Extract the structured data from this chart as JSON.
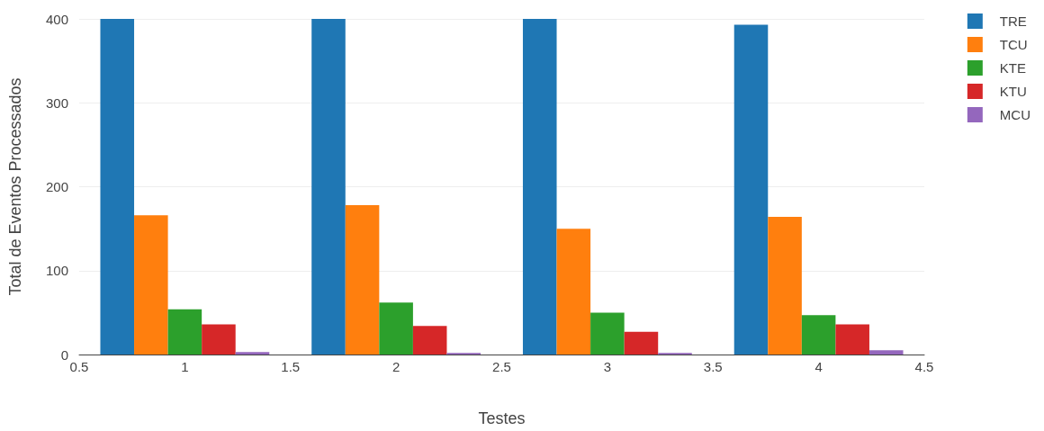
{
  "chart_data": {
    "type": "bar",
    "xlabel": "Testes",
    "ylabel": "Total de Eventos Processados",
    "x": [
      1,
      2,
      3,
      4
    ],
    "series": [
      {
        "name": "TRE",
        "color": "#1f77b4",
        "values": [
          400,
          400,
          400,
          393
        ]
      },
      {
        "name": "TCU",
        "color": "#ff7f0e",
        "values": [
          166,
          178,
          150,
          164
        ]
      },
      {
        "name": "KTE",
        "color": "#2ca02c",
        "values": [
          54,
          62,
          50,
          47
        ]
      },
      {
        "name": "KTU",
        "color": "#d62728",
        "values": [
          36,
          34,
          27,
          36
        ]
      },
      {
        "name": "MCU",
        "color": "#9467bd",
        "values": [
          3,
          2,
          2,
          5
        ]
      }
    ],
    "xlim": [
      0.5,
      4.5
    ],
    "xticks": [
      0.5,
      1,
      1.5,
      2,
      2.5,
      3,
      3.5,
      4,
      4.5
    ],
    "ylim": [
      0,
      400
    ],
    "yticks": [
      0,
      100,
      200,
      300,
      400
    ],
    "grid": "y",
    "legend": "top right"
  }
}
